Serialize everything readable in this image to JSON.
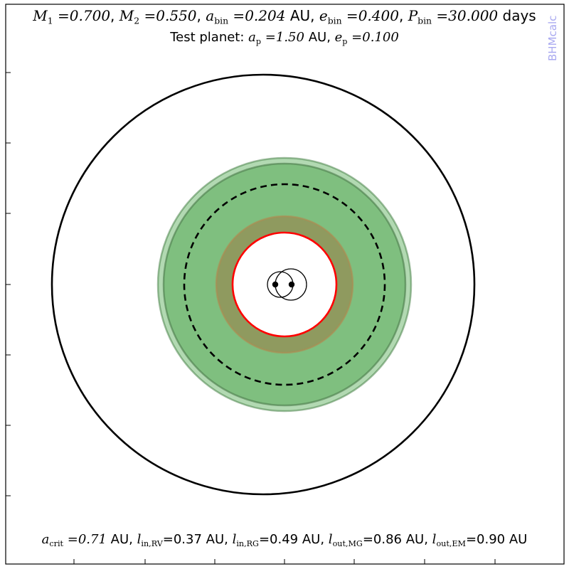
{
  "header": {
    "m1_value": "0.700",
    "m2_value": "0.550",
    "abin_value": "0.204",
    "abin_unit": "AU",
    "ebin_value": "0.400",
    "pbin_value": "30.000",
    "pbin_unit": "days",
    "planet_label": "Test planet:",
    "ap_value": "1.50",
    "ap_unit": "AU",
    "ep_value": "0.100"
  },
  "watermark": {
    "text": "BHMcalc",
    "color": "#a9a9f0"
  },
  "footer": {
    "acrit_value": "0.71",
    "acrit_unit": "AU",
    "lin_rv_value": "=0.37 AU,",
    "lin_rg_value": "=0.49 AU,",
    "lout_mg_value": "=0.86 AU,",
    "lout_em_value": "=0.90 AU"
  },
  "diagram": {
    "colors": {
      "habitable_zone": "#7fbf7f",
      "inner_zone": "#8f9a5f",
      "critical_radius": "#ff0000",
      "planet_orbit": "#000000",
      "dashed_orbit": "#000000"
    }
  }
}
